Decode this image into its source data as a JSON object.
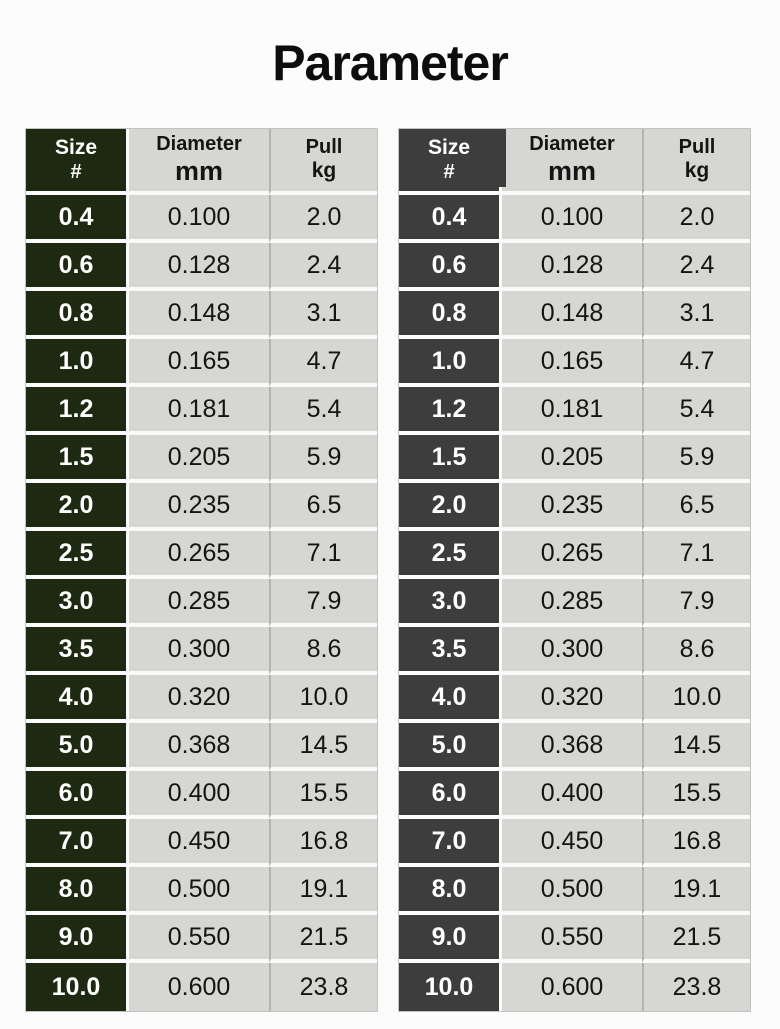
{
  "page": {
    "title": "Parameter",
    "background": "#fcfcfc"
  },
  "chart_data": [
    {
      "type": "table",
      "title": "Parameter",
      "panel": "left",
      "columns": [
        "Size #",
        "Diameter mm",
        "Pull kg"
      ],
      "rows": [
        [
          "0.4",
          "0.100",
          "2.0"
        ],
        [
          "0.6",
          "0.128",
          "2.4"
        ],
        [
          "0.8",
          "0.148",
          "3.1"
        ],
        [
          "1.0",
          "0.165",
          "4.7"
        ],
        [
          "1.2",
          "0.181",
          "5.4"
        ],
        [
          "1.5",
          "0.205",
          "5.9"
        ],
        [
          "2.0",
          "0.235",
          "6.5"
        ],
        [
          "2.5",
          "0.265",
          "7.1"
        ],
        [
          "3.0",
          "0.285",
          "7.9"
        ],
        [
          "3.5",
          "0.300",
          "8.6"
        ],
        [
          "4.0",
          "0.320",
          "10.0"
        ],
        [
          "5.0",
          "0.368",
          "14.5"
        ],
        [
          "6.0",
          "0.400",
          "15.5"
        ],
        [
          "7.0",
          "0.450",
          "16.8"
        ],
        [
          "8.0",
          "0.500",
          "19.1"
        ],
        [
          "9.0",
          "0.550",
          "21.5"
        ],
        [
          "10.0",
          "0.600",
          "23.8"
        ]
      ]
    },
    {
      "type": "table",
      "title": "Parameter",
      "panel": "right",
      "columns": [
        "Size #",
        "Diameter mm",
        "Pull kg"
      ],
      "rows": [
        [
          "0.4",
          "0.100",
          "2.0"
        ],
        [
          "0.6",
          "0.128",
          "2.4"
        ],
        [
          "0.8",
          "0.148",
          "3.1"
        ],
        [
          "1.0",
          "0.165",
          "4.7"
        ],
        [
          "1.2",
          "0.181",
          "5.4"
        ],
        [
          "1.5",
          "0.205",
          "5.9"
        ],
        [
          "2.0",
          "0.235",
          "6.5"
        ],
        [
          "2.5",
          "0.265",
          "7.1"
        ],
        [
          "3.0",
          "0.285",
          "7.9"
        ],
        [
          "3.5",
          "0.300",
          "8.6"
        ],
        [
          "4.0",
          "0.320",
          "10.0"
        ],
        [
          "5.0",
          "0.368",
          "14.5"
        ],
        [
          "6.0",
          "0.400",
          "15.5"
        ],
        [
          "7.0",
          "0.450",
          "16.8"
        ],
        [
          "8.0",
          "0.500",
          "19.1"
        ],
        [
          "9.0",
          "0.550",
          "21.5"
        ],
        [
          "10.0",
          "0.600",
          "23.8"
        ]
      ]
    }
  ],
  "tables": [
    {
      "id": "left",
      "size_column_color": "#1d2a11",
      "cell_color": "#d6d6d3",
      "columns": [
        {
          "line1": "Size",
          "line2": "#"
        },
        {
          "line1": "Diameter",
          "line2": "mm"
        },
        {
          "line1": "Pull",
          "line2": "kg"
        }
      ],
      "rows": [
        [
          "0.4",
          "0.100",
          "2.0"
        ],
        [
          "0.6",
          "0.128",
          "2.4"
        ],
        [
          "0.8",
          "0.148",
          "3.1"
        ],
        [
          "1.0",
          "0.165",
          "4.7"
        ],
        [
          "1.2",
          "0.181",
          "5.4"
        ],
        [
          "1.5",
          "0.205",
          "5.9"
        ],
        [
          "2.0",
          "0.235",
          "6.5"
        ],
        [
          "2.5",
          "0.265",
          "7.1"
        ],
        [
          "3.0",
          "0.285",
          "7.9"
        ],
        [
          "3.5",
          "0.300",
          "8.6"
        ],
        [
          "4.0",
          "0.320",
          "10.0"
        ],
        [
          "5.0",
          "0.368",
          "14.5"
        ],
        [
          "6.0",
          "0.400",
          "15.5"
        ],
        [
          "7.0",
          "0.450",
          "16.8"
        ],
        [
          "8.0",
          "0.500",
          "19.1"
        ],
        [
          "9.0",
          "0.550",
          "21.5"
        ],
        [
          "10.0",
          "0.600",
          "23.8"
        ]
      ]
    },
    {
      "id": "right",
      "size_column_color": "#3d3d3d",
      "cell_color": "#d6d6d3",
      "columns": [
        {
          "line1": "Size",
          "line2": "#"
        },
        {
          "line1": "Diameter",
          "line2": "mm"
        },
        {
          "line1": "Pull",
          "line2": "kg"
        }
      ],
      "rows": [
        [
          "0.4",
          "0.100",
          "2.0"
        ],
        [
          "0.6",
          "0.128",
          "2.4"
        ],
        [
          "0.8",
          "0.148",
          "3.1"
        ],
        [
          "1.0",
          "0.165",
          "4.7"
        ],
        [
          "1.2",
          "0.181",
          "5.4"
        ],
        [
          "1.5",
          "0.205",
          "5.9"
        ],
        [
          "2.0",
          "0.235",
          "6.5"
        ],
        [
          "2.5",
          "0.265",
          "7.1"
        ],
        [
          "3.0",
          "0.285",
          "7.9"
        ],
        [
          "3.5",
          "0.300",
          "8.6"
        ],
        [
          "4.0",
          "0.320",
          "10.0"
        ],
        [
          "5.0",
          "0.368",
          "14.5"
        ],
        [
          "6.0",
          "0.400",
          "15.5"
        ],
        [
          "7.0",
          "0.450",
          "16.8"
        ],
        [
          "8.0",
          "0.500",
          "19.1"
        ],
        [
          "9.0",
          "0.550",
          "21.5"
        ],
        [
          "10.0",
          "0.600",
          "23.8"
        ]
      ]
    }
  ]
}
